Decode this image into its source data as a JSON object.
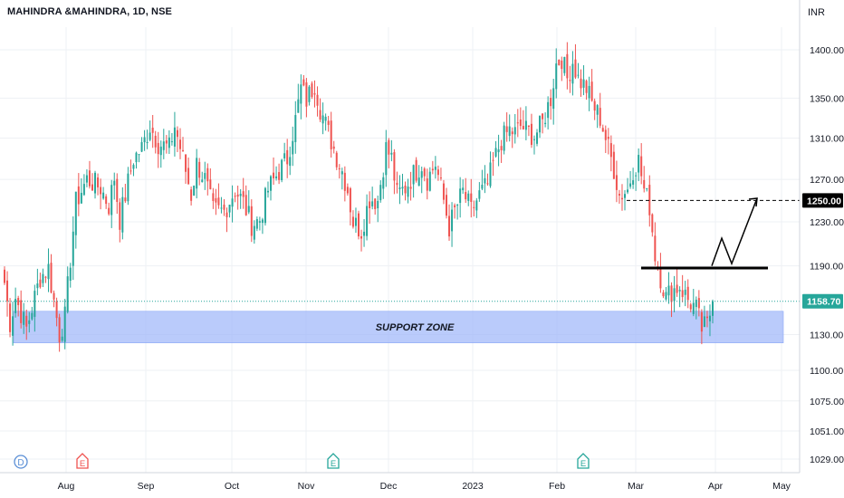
{
  "header": {
    "symbol_title": "MAHINDRA &MAHINDRA, 1D, NSE",
    "currency": "INR"
  },
  "colors": {
    "up": "#26a69a",
    "down": "#ef5350",
    "support": "#9db5fa",
    "grid": "#eef0f4",
    "axis_text": "#131722"
  },
  "icons": [
    "dividend-marker-icon",
    "earnings-marker-icon"
  ],
  "chart_data": {
    "type": "candlestick",
    "title": "MAHINDRA &MAHINDRA, 1D, NSE",
    "y_axis": {
      "ticks": [
        1029,
        1051,
        1075,
        1100,
        1130,
        1190,
        1230,
        1270,
        1310,
        1350,
        1400
      ],
      "tick_labels": [
        "1029.00",
        "1051.00",
        "1075.00",
        "1100.00",
        "1130.00",
        "1190.00",
        "1230.00",
        "1270.00",
        "1310.00",
        "1350.00",
        "1400.00"
      ],
      "scale": "log"
    },
    "x_axis": {
      "tick_labels": [
        "Aug",
        "Sep",
        "Oct",
        "Nov",
        "Dec",
        "2023",
        "Feb",
        "Mar",
        "Apr",
        "May"
      ]
    },
    "last_price": {
      "value": 1158.7,
      "label": "1158.70"
    },
    "target_level": {
      "value": 1250,
      "label": "1250.00"
    },
    "resistance_level": 1188,
    "support_zone": {
      "label": "SUPPORT ZONE",
      "low": 1123,
      "high": 1150
    },
    "projection_path": [
      1190,
      1215,
      1192,
      1252
    ],
    "event_markers": [
      {
        "type": "dividend",
        "label": "D"
      },
      {
        "type": "earnings",
        "label": "E"
      },
      {
        "type": "earnings",
        "label": "E"
      },
      {
        "type": "earnings",
        "label": "E"
      }
    ],
    "waypoints": [
      [
        0,
        1175
      ],
      [
        2,
        1140
      ],
      [
        4,
        1162
      ],
      [
        8,
        1135
      ],
      [
        13,
        1180
      ],
      [
        16,
        1188
      ],
      [
        20,
        1130
      ],
      [
        22,
        1145
      ],
      [
        26,
        1248
      ],
      [
        30,
        1270
      ],
      [
        35,
        1262
      ],
      [
        38,
        1245
      ],
      [
        40,
        1272
      ],
      [
        42,
        1232
      ],
      [
        47,
        1290
      ],
      [
        50,
        1300
      ],
      [
        53,
        1322
      ],
      [
        56,
        1305
      ],
      [
        60,
        1300
      ],
      [
        62,
        1322
      ],
      [
        65,
        1290
      ],
      [
        68,
        1255
      ],
      [
        70,
        1285
      ],
      [
        73,
        1270
      ],
      [
        76,
        1240
      ],
      [
        80,
        1240
      ],
      [
        84,
        1260
      ],
      [
        87,
        1248
      ],
      [
        90,
        1228
      ],
      [
        93,
        1232
      ],
      [
        96,
        1260
      ],
      [
        100,
        1278
      ],
      [
        103,
        1290
      ],
      [
        106,
        1328
      ],
      [
        108,
        1360
      ],
      [
        110,
        1348
      ],
      [
        113,
        1365
      ],
      [
        115,
        1340
      ],
      [
        118,
        1315
      ],
      [
        121,
        1292
      ],
      [
        123,
        1278
      ],
      [
        125,
        1260
      ],
      [
        127,
        1230
      ],
      [
        130,
        1222
      ],
      [
        133,
        1252
      ],
      [
        136,
        1250
      ],
      [
        139,
        1300
      ],
      [
        141,
        1290
      ],
      [
        143,
        1255
      ],
      [
        146,
        1262
      ],
      [
        149,
        1275
      ],
      [
        152,
        1285
      ],
      [
        154,
        1270
      ],
      [
        157,
        1285
      ],
      [
        160,
        1250
      ],
      [
        162,
        1225
      ],
      [
        164,
        1240
      ],
      [
        167,
        1258
      ],
      [
        170,
        1240
      ],
      [
        173,
        1255
      ],
      [
        176,
        1265
      ],
      [
        178,
        1285
      ],
      [
        181,
        1308
      ],
      [
        184,
        1318
      ],
      [
        186,
        1315
      ],
      [
        188,
        1322
      ],
      [
        190,
        1318
      ],
      [
        193,
        1312
      ],
      [
        196,
        1325
      ],
      [
        199,
        1350
      ],
      [
        201,
        1385
      ],
      [
        203,
        1392
      ],
      [
        205,
        1370
      ],
      [
        207,
        1388
      ],
      [
        209,
        1370
      ],
      [
        212,
        1360
      ],
      [
        214,
        1345
      ],
      [
        217,
        1330
      ],
      [
        220,
        1300
      ],
      [
        222,
        1280
      ],
      [
        224,
        1255
      ],
      [
        227,
        1260
      ],
      [
        229,
        1280
      ],
      [
        231,
        1288
      ],
      [
        233,
        1260
      ],
      [
        235,
        1245
      ],
      [
        237,
        1200
      ],
      [
        239,
        1180
      ],
      [
        241,
        1162
      ],
      [
        243,
        1168
      ],
      [
        246,
        1172
      ],
      [
        249,
        1160
      ],
      [
        252,
        1152
      ],
      [
        254,
        1135
      ],
      [
        256,
        1138
      ],
      [
        258,
        1158
      ]
    ]
  }
}
